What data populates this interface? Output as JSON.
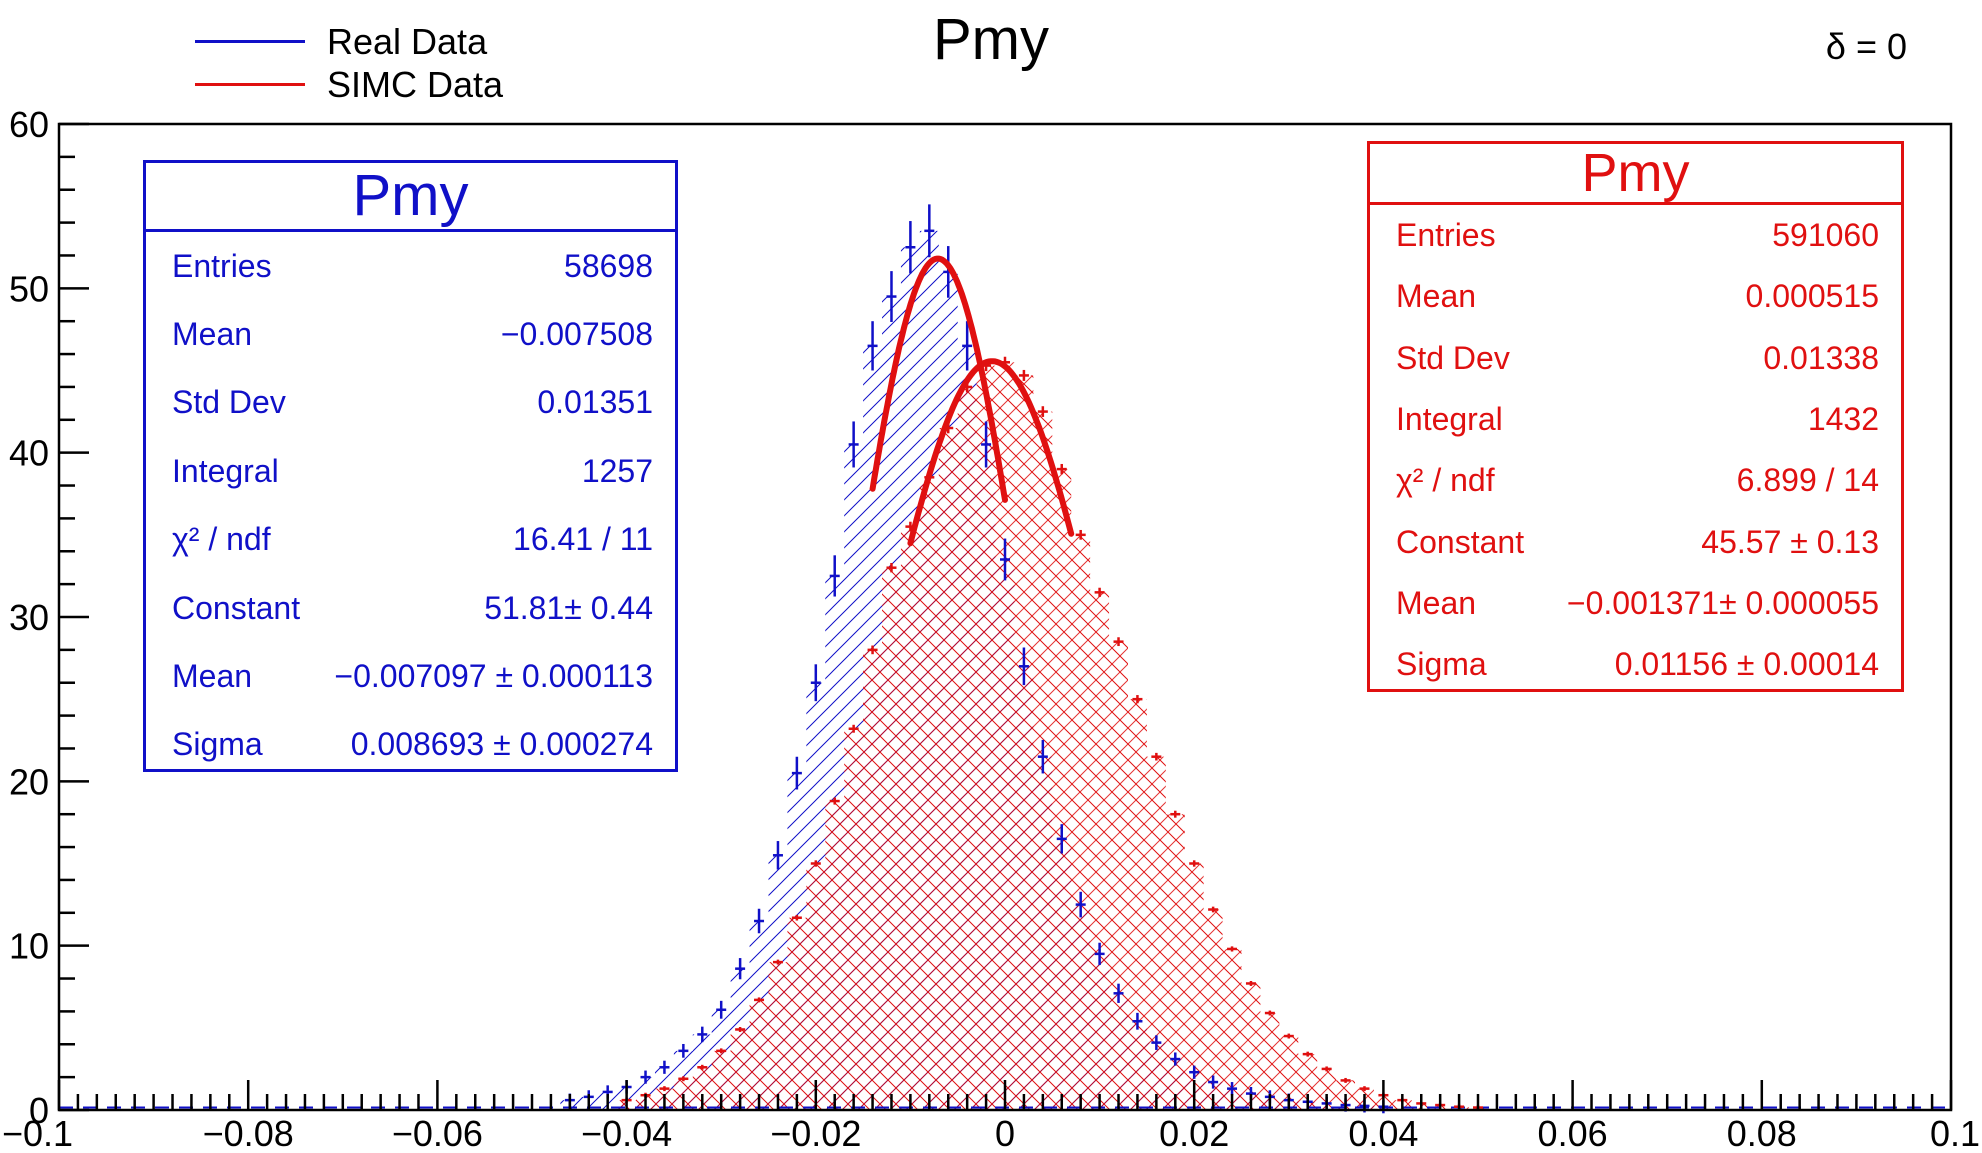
{
  "chart_data": {
    "type": "histogram",
    "title": "Pmy",
    "annotation": "δ = 0",
    "xlabel": "",
    "ylabel": "",
    "xlim": [
      -0.1,
      0.1
    ],
    "ylim": [
      0,
      60
    ],
    "x_ticks": [
      "−0.1",
      "−0.08",
      "−0.06",
      "−0.04",
      "−0.02",
      "0",
      "0.02",
      "0.04",
      "0.06",
      "0.08",
      "0.1"
    ],
    "y_ticks": [
      "0",
      "10",
      "20",
      "30",
      "40",
      "50",
      "60"
    ],
    "x_tick_values": [
      -0.1,
      -0.08,
      -0.06,
      -0.04,
      -0.02,
      0,
      0.02,
      0.04,
      0.06,
      0.08,
      0.1
    ],
    "y_tick_values": [
      0,
      10,
      20,
      30,
      40,
      50,
      60
    ],
    "legend": [
      {
        "label": "Real Data",
        "color": "#1010c8"
      },
      {
        "label": "SIMC Data",
        "color": "#e01010"
      }
    ],
    "colors": {
      "real": "#1010c8",
      "simc": "#e01010",
      "fit": "#e01010"
    },
    "series": [
      {
        "name": "Real Data",
        "style": "hist-errorbars-hatched",
        "x": [
          -0.046,
          -0.044,
          -0.042,
          -0.04,
          -0.038,
          -0.036,
          -0.034,
          -0.032,
          -0.03,
          -0.028,
          -0.026,
          -0.024,
          -0.022,
          -0.02,
          -0.018,
          -0.016,
          -0.014,
          -0.012,
          -0.01,
          -0.008,
          -0.006,
          -0.004,
          -0.002,
          0.0,
          0.002,
          0.004,
          0.006,
          0.008,
          0.01,
          0.012,
          0.014,
          0.016,
          0.018,
          0.02,
          0.022,
          0.024,
          0.026,
          0.028,
          0.03,
          0.032,
          0.034,
          0.036,
          0.038,
          0.04
        ],
        "y": [
          0.6,
          0.8,
          1.1,
          1.4,
          2.0,
          2.6,
          3.6,
          4.6,
          6.1,
          8.6,
          11.5,
          15.5,
          20.5,
          26.0,
          32.5,
          40.5,
          46.5,
          49.5,
          52.5,
          53.5,
          51.0,
          46.5,
          40.5,
          33.5,
          27.0,
          21.5,
          16.5,
          12.5,
          9.5,
          7.1,
          5.4,
          4.1,
          3.1,
          2.3,
          1.7,
          1.3,
          1.0,
          0.8,
          0.6,
          0.5,
          0.4,
          0.3,
          0.25,
          0.2
        ]
      },
      {
        "name": "SIMC Data",
        "style": "hist-errorbars-hatched",
        "x": [
          -0.04,
          -0.038,
          -0.036,
          -0.034,
          -0.032,
          -0.03,
          -0.028,
          -0.026,
          -0.024,
          -0.022,
          -0.02,
          -0.018,
          -0.016,
          -0.014,
          -0.012,
          -0.01,
          -0.008,
          -0.006,
          -0.004,
          -0.002,
          0.0,
          0.002,
          0.004,
          0.006,
          0.008,
          0.01,
          0.012,
          0.014,
          0.016,
          0.018,
          0.02,
          0.022,
          0.024,
          0.026,
          0.028,
          0.03,
          0.032,
          0.034,
          0.036,
          0.038,
          0.04,
          0.042,
          0.044,
          0.046,
          0.048,
          0.05
        ],
        "y": [
          0.6,
          0.9,
          1.3,
          1.9,
          2.6,
          3.6,
          4.9,
          6.7,
          9.0,
          11.7,
          15.0,
          18.8,
          23.2,
          28.0,
          33.0,
          35.5,
          38.5,
          41.5,
          44.0,
          45.3,
          45.5,
          44.7,
          42.5,
          39.0,
          35.0,
          31.5,
          28.5,
          25.0,
          21.5,
          18.0,
          15.0,
          12.2,
          9.8,
          7.7,
          5.9,
          4.5,
          3.4,
          2.5,
          1.8,
          1.3,
          0.9,
          0.6,
          0.4,
          0.3,
          0.2,
          0.15
        ]
      }
    ],
    "fits": [
      {
        "name": "Real Data fit",
        "type": "gaus",
        "constant": 51.81,
        "mean": -0.007097,
        "sigma": 0.008693,
        "range": [
          -0.014,
          0.0
        ]
      },
      {
        "name": "SIMC Data fit",
        "type": "gaus",
        "constant": 45.57,
        "mean": -0.001371,
        "sigma": 0.01156,
        "range": [
          -0.01,
          0.007
        ]
      }
    ]
  },
  "legend_labels": {
    "real": "Real Data",
    "simc": "SIMC Data"
  },
  "stat_boxes": {
    "real": {
      "title": "Pmy",
      "rows": [
        {
          "label": "Entries",
          "value": "58698"
        },
        {
          "label": "Mean",
          "value": "−0.007508"
        },
        {
          "label": "Std Dev",
          "value": "0.01351"
        },
        {
          "label": "Integral",
          "value": "1257"
        },
        {
          "label": "χ² / ndf",
          "value": "16.41 / 11"
        },
        {
          "label": "Constant",
          "value": "51.81± 0.44"
        },
        {
          "label": "Mean",
          "value": "−0.007097 ± 0.000113"
        },
        {
          "label": "Sigma",
          "value": "0.008693 ± 0.000274"
        }
      ]
    },
    "simc": {
      "title": "Pmy",
      "rows": [
        {
          "label": "Entries",
          "value": "591060"
        },
        {
          "label": "Mean",
          "value": "0.000515"
        },
        {
          "label": "Std Dev",
          "value": "0.01338"
        },
        {
          "label": "Integral",
          "value": "1432"
        },
        {
          "label": "χ² / ndf",
          "value": "6.899 / 14"
        },
        {
          "label": "Constant",
          "value": "45.57 ± 0.13"
        },
        {
          "label": "Mean",
          "value": "−0.001371± 0.000055"
        },
        {
          "label": "Sigma",
          "value": "0.01156 ± 0.00014"
        }
      ]
    }
  }
}
